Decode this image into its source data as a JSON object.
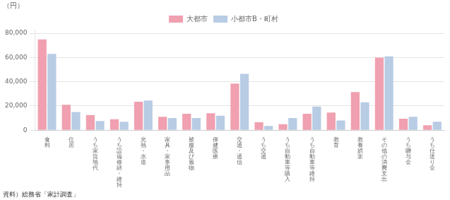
{
  "chart_data": {
    "type": "bar",
    "ylabel": "（円）",
    "annotations": [
      "資料）総務省「家計調査」"
    ],
    "categories": [
      "食\n料",
      "住\n居",
      "う\nち\n家\n賃\n地\n代",
      "う\nち\n設\n備\n修\n繕\n・\n維\n持",
      "光\n熱\n・\n水\n道",
      "家\n具\n・\n家\n事\n用\n品",
      "被\n服\n及\nび\n履\n物",
      "保\n健\n医\n療",
      "交\n通\n・\n通\n信",
      "う\nち\n交\n通",
      "う\nち\n自\n動\n車\n等\n購\n入",
      "う\nち\n自\n動\n車\n等\n維\n持",
      "教\n育",
      "教\n養\n娯\n楽",
      "そ\nの\n他\nの\n消\n費\n支\n出",
      "う\nち\n贈\n与\n金",
      "う\nち\n仕\n送\nり\n金"
    ],
    "series": [
      {
        "name": "大都市",
        "color": "#f0a0b0",
        "values": [
          75000,
          21000,
          12500,
          9000,
          23500,
          11000,
          13500,
          14000,
          38500,
          6500,
          5000,
          13500,
          14500,
          31500,
          60000,
          9500,
          4000
        ]
      },
      {
        "name": "小都市B・町村",
        "color": "#b8cce4",
        "values": [
          63000,
          15000,
          7500,
          7000,
          24500,
          10000,
          10000,
          12000,
          46500,
          3500,
          10000,
          19500,
          8000,
          23000,
          61000,
          11000,
          7000
        ]
      }
    ],
    "ylim": [
      0,
      83000
    ],
    "yticks": [
      0,
      {
        "value": 20000,
        "label": "20,000"
      },
      {
        "value": 40000,
        "label": "40,000"
      },
      {
        "value": 60000,
        "label": "60,000"
      },
      {
        "value": 80000,
        "label": "80,000"
      }
    ],
    "grid": true,
    "legend": "top"
  }
}
